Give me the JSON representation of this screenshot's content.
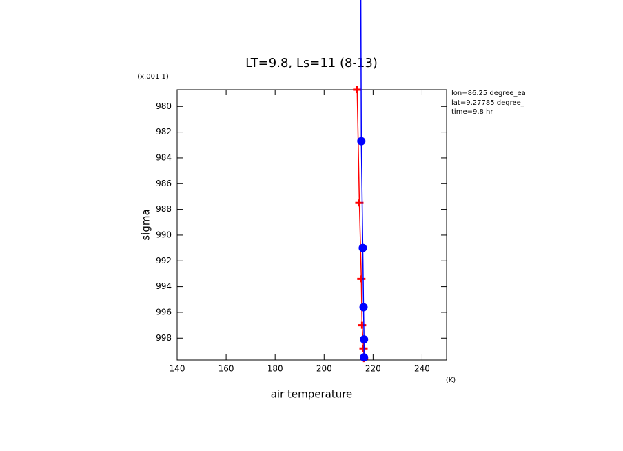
{
  "chart_data": {
    "type": "line",
    "title": "LT=9.8, Ls=11 (8-13)",
    "y_scale_label": "(x.001 1)",
    "y_label": "sigma",
    "x_label": "air temperature",
    "x_unit": "(K)",
    "annotations": [
      "lon=86.25 degree_ea",
      "lat=9.27785 degree_",
      "time=9.8 hr"
    ],
    "xlim": [
      140,
      250
    ],
    "xticks": [
      140,
      160,
      180,
      200,
      220,
      240
    ],
    "ylim": [
      978.7,
      999.7
    ],
    "yticks": [
      980,
      982,
      984,
      986,
      988,
      990,
      992,
      994,
      996,
      998
    ],
    "y_inverted": true,
    "series": [
      {
        "color": "#ff0000",
        "marker": "cross",
        "x": [
          213.5,
          214.4,
          215.2,
          215.5,
          216.1,
          216.3
        ],
        "y": [
          978.7,
          987.5,
          993.4,
          997.0,
          998.8,
          999.6
        ]
      },
      {
        "color": "#0000ff",
        "marker": "circle",
        "x": [
          215.0,
          215.2,
          215.8,
          216.1,
          216.3,
          216.3
        ],
        "y": [
          971.7,
          982.7,
          991.0,
          995.6,
          998.1,
          999.5
        ]
      }
    ]
  }
}
